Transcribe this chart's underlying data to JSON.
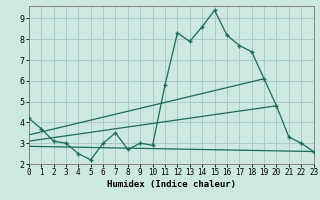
{
  "xlabel": "Humidex (Indice chaleur)",
  "background_color": "#cce8e0",
  "grid_color": "#aaccc4",
  "line_color": "#1a6b5a",
  "x_ticks": [
    0,
    1,
    2,
    3,
    4,
    5,
    6,
    7,
    8,
    9,
    10,
    11,
    12,
    13,
    14,
    15,
    16,
    17,
    18,
    19,
    20,
    21,
    22,
    23
  ],
  "y_ticks": [
    2,
    3,
    4,
    5,
    6,
    7,
    8,
    9
  ],
  "xlim": [
    0,
    23
  ],
  "ylim": [
    2.0,
    9.6
  ],
  "line1_x": [
    0,
    1,
    2,
    3,
    4,
    5,
    6,
    7,
    8,
    9,
    10,
    11,
    12,
    13,
    14,
    15,
    16,
    17,
    18,
    19,
    20,
    21,
    22,
    23
  ],
  "line1_y": [
    4.2,
    3.7,
    3.1,
    3.0,
    2.5,
    2.2,
    3.0,
    3.5,
    2.7,
    3.0,
    2.9,
    5.8,
    8.3,
    7.9,
    8.6,
    9.4,
    8.2,
    7.7,
    7.4,
    6.1,
    4.8,
    3.3,
    3.0,
    2.6
  ],
  "line2_x": [
    0,
    19
  ],
  "line2_y": [
    3.4,
    6.1
  ],
  "line3_x": [
    0,
    20
  ],
  "line3_y": [
    3.1,
    4.8
  ],
  "line4_x": [
    0,
    23
  ],
  "line4_y": [
    2.85,
    2.6
  ]
}
